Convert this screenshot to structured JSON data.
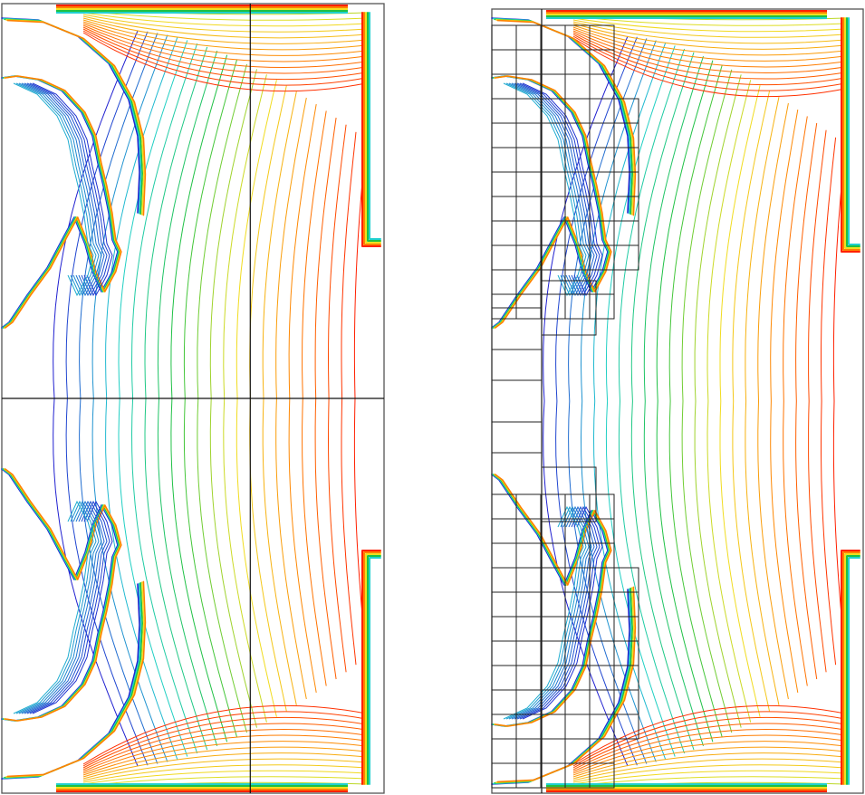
{
  "figure": {
    "panels": [
      {
        "name": "uniform-grid-panel",
        "contour_lines": 24
      },
      {
        "name": "adaptive-grid-panel",
        "contour_lines": 24
      }
    ],
    "palette": {
      "low": "#2020d0",
      "mid": "#20d0d0",
      "green": "#20c040",
      "yellow": "#f0e020",
      "orange": "#ff8000",
      "high": "#ff2000",
      "frame": "#555555",
      "grid": "#222222"
    }
  }
}
